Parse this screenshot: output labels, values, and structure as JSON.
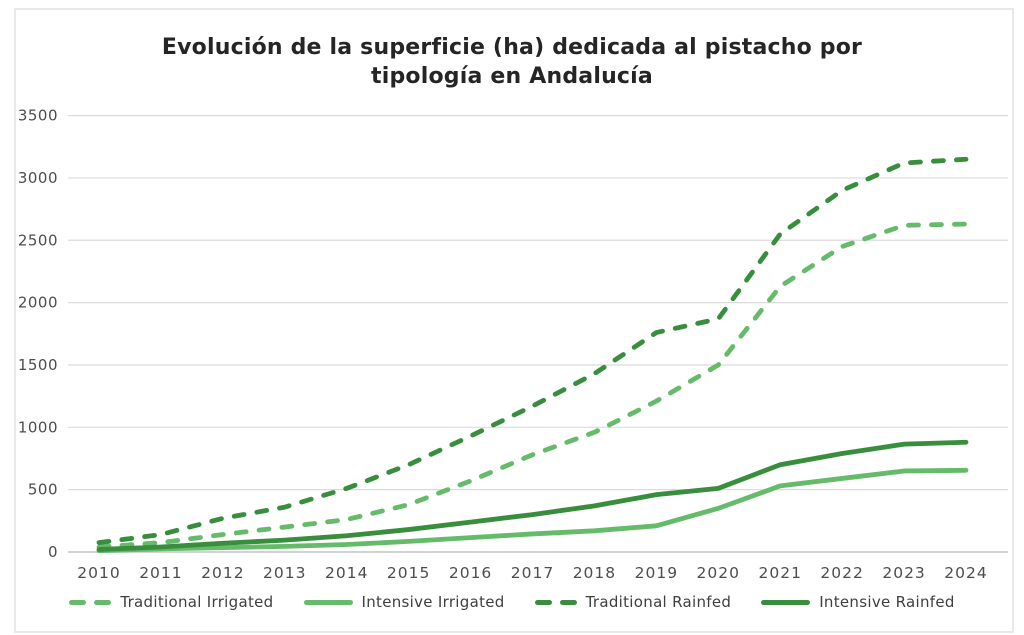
{
  "chart": {
    "title_lines": [
      "Evolución de la superficie (ha) dedicada al pistacho por",
      "tipología en Andalucía"
    ]
  },
  "colors": {
    "light_green": "#66bb6a",
    "dark_green": "#388e3c",
    "grid": "#dbdbdb",
    "axis_line": "#c4c4c4",
    "tick_text": "#4d4d4d",
    "title_text": "#252525",
    "legend_text": "#3f3f3f",
    "frame_border": "#e9e9e9",
    "background": "#ffffff"
  },
  "chart_data": {
    "type": "line",
    "title": "Evolución de la superficie (ha) dedicada al pistacho por tipología en Andalucía",
    "xlabel": "",
    "ylabel": "",
    "x": [
      2010,
      2011,
      2012,
      2013,
      2014,
      2015,
      2016,
      2017,
      2018,
      2019,
      2020,
      2021,
      2022,
      2023,
      2024
    ],
    "ylim": [
      0,
      3500
    ],
    "y_ticks": [
      0,
      500,
      1000,
      1500,
      2000,
      2500,
      3000,
      3500
    ],
    "grid": "horizontal",
    "legend_position": "bottom",
    "series": [
      {
        "name": "Traditional Irrigated",
        "id": "traditional-irrigated",
        "color": "light_green",
        "dashed": true,
        "values": [
          40,
          75,
          140,
          200,
          260,
          380,
          570,
          780,
          960,
          1210,
          1500,
          2130,
          2450,
          2620,
          2630
        ]
      },
      {
        "name": "Intensive Irrigated",
        "id": "intensive-irrigated",
        "color": "light_green",
        "dashed": false,
        "values": [
          10,
          25,
          35,
          45,
          60,
          85,
          115,
          145,
          170,
          210,
          350,
          530,
          590,
          650,
          655
        ]
      },
      {
        "name": "Traditional Rainfed",
        "id": "traditional-rainfed",
        "color": "dark_green",
        "dashed": true,
        "values": [
          75,
          140,
          270,
          360,
          510,
          700,
          930,
          1170,
          1430,
          1760,
          1870,
          2550,
          2900,
          3120,
          3150
        ]
      },
      {
        "name": "Intensive Rainfed",
        "id": "intensive-rainfed",
        "color": "dark_green",
        "dashed": false,
        "values": [
          20,
          40,
          70,
          95,
          130,
          180,
          240,
          300,
          370,
          460,
          510,
          700,
          790,
          865,
          880
        ]
      }
    ]
  }
}
